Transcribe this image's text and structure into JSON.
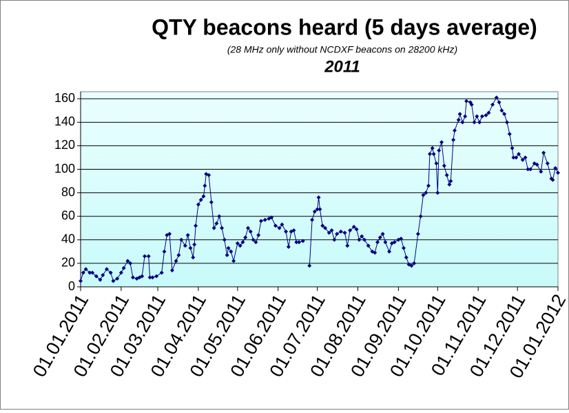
{
  "chart_data": {
    "type": "line",
    "title": "QTY beacons heard (5 days average)",
    "subtitle": "(28 MHz only without NCDXF beacons on 28200 kHz)",
    "year_label": "2011",
    "x": [
      "2011-01-01",
      "2011-01-03",
      "2011-01-05",
      "2011-01-08",
      "2011-01-10",
      "2011-01-13",
      "2011-01-16",
      "2011-01-18",
      "2011-01-21",
      "2011-01-24",
      "2011-01-26",
      "2011-01-29",
      "2011-02-01",
      "2011-02-03",
      "2011-02-06",
      "2011-02-08",
      "2011-02-10",
      "2011-02-13",
      "2011-02-15",
      "2011-02-17",
      "2011-02-19",
      "2011-02-22",
      "2011-02-23",
      "2011-02-25",
      "2011-02-28",
      "2011-03-04",
      "2011-03-06",
      "2011-03-08",
      "2011-03-10",
      "2011-03-12",
      "2011-03-15",
      "2011-03-17",
      "2011-03-19",
      "2011-03-22",
      "2011-03-24",
      "2011-03-26",
      "2011-03-28",
      "2011-03-29",
      "2011-03-30",
      "2011-04-01",
      "2011-04-03",
      "2011-04-05",
      "2011-04-06",
      "2011-04-07",
      "2011-04-09",
      "2011-04-11",
      "2011-04-13",
      "2011-04-15",
      "2011-04-17",
      "2011-04-19",
      "2011-04-21",
      "2011-04-23",
      "2011-04-24",
      "2011-04-26",
      "2011-04-28",
      "2011-05-01",
      "2011-05-03",
      "2011-05-05",
      "2011-05-07",
      "2011-05-09",
      "2011-05-11",
      "2011-05-13",
      "2011-05-15",
      "2011-05-17",
      "2011-05-19",
      "2011-05-22",
      "2011-05-25",
      "2011-05-27",
      "2011-05-30",
      "2011-06-02",
      "2011-06-04",
      "2011-06-07",
      "2011-06-09",
      "2011-06-11",
      "2011-06-13",
      "2011-06-15",
      "2011-06-17",
      "2011-06-20",
      "2011-06-22",
      "2011-06-25",
      "2011-06-27",
      "2011-06-29",
      "2011-07-01",
      "2011-07-02",
      "2011-07-03",
      "2011-07-05",
      "2011-07-07",
      "2011-07-10",
      "2011-07-12",
      "2011-07-14",
      "2011-07-16",
      "2011-07-19",
      "2011-07-22",
      "2011-07-24",
      "2011-07-26",
      "2011-07-29",
      "2011-07-31",
      "2011-08-02",
      "2011-08-04",
      "2011-08-06",
      "2011-08-09",
      "2011-08-12",
      "2011-08-14",
      "2011-08-16",
      "2011-08-18",
      "2011-08-20",
      "2011-08-22",
      "2011-08-25",
      "2011-08-27",
      "2011-08-29",
      "2011-09-01",
      "2011-09-03",
      "2011-09-05",
      "2011-09-07",
      "2011-09-09",
      "2011-09-11",
      "2011-09-13",
      "2011-09-16",
      "2011-09-18",
      "2011-09-20",
      "2011-09-22",
      "2011-09-24",
      "2011-09-25",
      "2011-09-27",
      "2011-09-28",
      "2011-09-30",
      "2011-10-01",
      "2011-10-02",
      "2011-10-04",
      "2011-10-06",
      "2011-10-08",
      "2011-10-10",
      "2011-10-11",
      "2011-10-13",
      "2011-10-14",
      "2011-10-17",
      "2011-10-18",
      "2011-10-20",
      "2011-10-22",
      "2011-10-23",
      "2011-10-26",
      "2011-10-27",
      "2011-10-29",
      "2011-10-31",
      "2011-11-02",
      "2011-11-04",
      "2011-11-07",
      "2011-11-09",
      "2011-11-12",
      "2011-11-15",
      "2011-11-17",
      "2011-11-19",
      "2011-11-21",
      "2011-11-23",
      "2011-11-25",
      "2011-11-27",
      "2011-11-28",
      "2011-11-30",
      "2011-12-02",
      "2011-12-05",
      "2011-12-07",
      "2011-12-09",
      "2011-12-11",
      "2011-12-14",
      "2011-12-16",
      "2011-12-19",
      "2011-12-21",
      "2011-12-24",
      "2011-12-27",
      "2011-12-28",
      "2011-12-30",
      "2012-01-01"
    ],
    "series": [
      {
        "color": "#000080",
        "values": [
          5,
          12,
          15,
          12,
          12,
          9,
          6,
          10,
          15,
          12,
          5,
          7,
          12,
          16,
          22,
          20,
          8,
          7,
          8,
          9,
          26,
          26,
          8,
          8,
          9,
          12,
          30,
          44,
          45,
          14,
          22,
          27,
          40,
          35,
          44,
          33,
          25,
          36,
          52,
          70,
          74,
          77,
          86,
          96,
          95,
          72,
          50,
          54,
          60,
          50,
          40,
          27,
          33,
          30,
          22,
          37,
          35,
          38,
          42,
          50,
          47,
          40,
          38,
          44,
          56,
          57,
          58,
          59,
          52,
          50,
          53,
          47,
          34,
          47,
          48,
          38,
          38,
          39,
          null,
          18,
          57,
          64,
          66,
          76,
          66,
          52,
          50,
          46,
          48,
          40,
          45,
          47,
          46,
          35,
          48,
          51,
          49,
          40,
          43,
          40,
          35,
          30,
          29,
          38,
          42,
          45,
          38,
          30,
          37,
          38,
          40,
          41,
          33,
          25,
          19,
          18,
          20,
          45,
          60,
          78,
          80,
          86,
          113,
          118,
          113,
          105,
          80,
          116,
          123,
          103,
          95,
          87,
          90,
          125,
          133,
          142,
          147,
          140,
          145,
          158,
          157,
          155,
          140,
          145,
          140,
          145,
          146,
          148,
          155,
          161,
          157,
          150,
          147,
          140,
          130,
          118,
          110,
          110,
          113,
          108,
          110,
          100,
          100,
          105,
          104,
          98,
          114,
          105,
          92,
          91,
          101,
          97
        ]
      }
    ],
    "xlim": [
      "2011-01-01",
      "2012-01-01"
    ],
    "xticks": [
      {
        "value": "2011-01-01",
        "label": "01.01.2011"
      },
      {
        "value": "2011-02-01",
        "label": "01.02.2011"
      },
      {
        "value": "2011-03-01",
        "label": "01.03.2011"
      },
      {
        "value": "2011-04-01",
        "label": "01.04.2011"
      },
      {
        "value": "2011-05-01",
        "label": "01.05.2011"
      },
      {
        "value": "2011-06-01",
        "label": "01.06.2011"
      },
      {
        "value": "2011-07-01",
        "label": "01.07.2011"
      },
      {
        "value": "2011-08-01",
        "label": "01.08.2011"
      },
      {
        "value": "2011-09-01",
        "label": "01.09.2011"
      },
      {
        "value": "2011-10-01",
        "label": "01.10.2011"
      },
      {
        "value": "2011-11-01",
        "label": "01.11.2011"
      },
      {
        "value": "2011-12-01",
        "label": "01.12.2011"
      },
      {
        "value": "2012-01-01",
        "label": "01.01.2012"
      }
    ],
    "ylim": [
      0,
      166
    ],
    "yticks": [
      0,
      20,
      40,
      60,
      80,
      100,
      120,
      140,
      160
    ],
    "grid": true
  }
}
